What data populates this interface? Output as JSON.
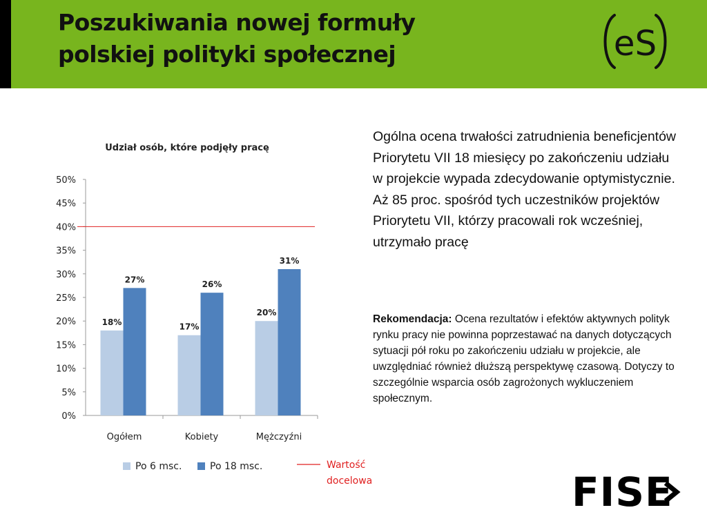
{
  "header": {
    "title_line1": "Poszukiwania nowej formuły",
    "title_line2": "polskiej polityki społecznej",
    "logo_text": "eS",
    "bg_color": "#78b51e"
  },
  "chart_data": {
    "type": "bar",
    "title": "Udział osób, które podjęły pracę",
    "categories": [
      "Ogółem",
      "Kobiety",
      "Mężczyźni"
    ],
    "series": [
      {
        "name": "Po 6 msc.",
        "values": [
          18,
          17,
          20
        ],
        "labels": [
          "18%",
          "17%",
          "20%"
        ],
        "color": "#b9cde5"
      },
      {
        "name": "Po 18 msc.",
        "values": [
          27,
          26,
          31
        ],
        "labels": [
          "27%",
          "26%",
          "31%"
        ],
        "color": "#4f81bd"
      }
    ],
    "ylim": [
      0,
      50
    ],
    "yticks": [
      0,
      5,
      10,
      15,
      20,
      25,
      30,
      35,
      40,
      45,
      50
    ],
    "ytick_labels": [
      "0%",
      "5%",
      "10%",
      "15%",
      "20%",
      "25%",
      "30%",
      "35%",
      "40%",
      "45%",
      "50%"
    ],
    "target": {
      "value": 40,
      "label_line1": "Wartość",
      "label_line2": "docelowa",
      "color": "#e02020"
    },
    "grid": false,
    "legend_position": "bottom"
  },
  "text": {
    "para1": "Ogólna ocena trwałości zatrudnienia beneficjentów Priorytetu VII 18 miesięcy po zakończeniu udziału w projekcie wypada zdecydowanie optymistycznie. Aż 85 proc. spośród tych uczestników projektów Priorytetu VII, którzy pracowali rok wcześniej, utrzymało pracę",
    "para2_label": "Rekomendacja:",
    "para2_body": " Ocena rezultatów i efektów aktywnych polityk rynku pracy nie powinna poprzestawać na danych dotyczących sytuacji pół roku po zakończeniu udziału w projekcie, ale uwzględniać również dłuższą perspektywę czasową. Dotyczy to szczególnie wsparcia osób zagrożonych wykluczeniem społecznym."
  },
  "footer": {
    "logo_text": "FISE"
  }
}
